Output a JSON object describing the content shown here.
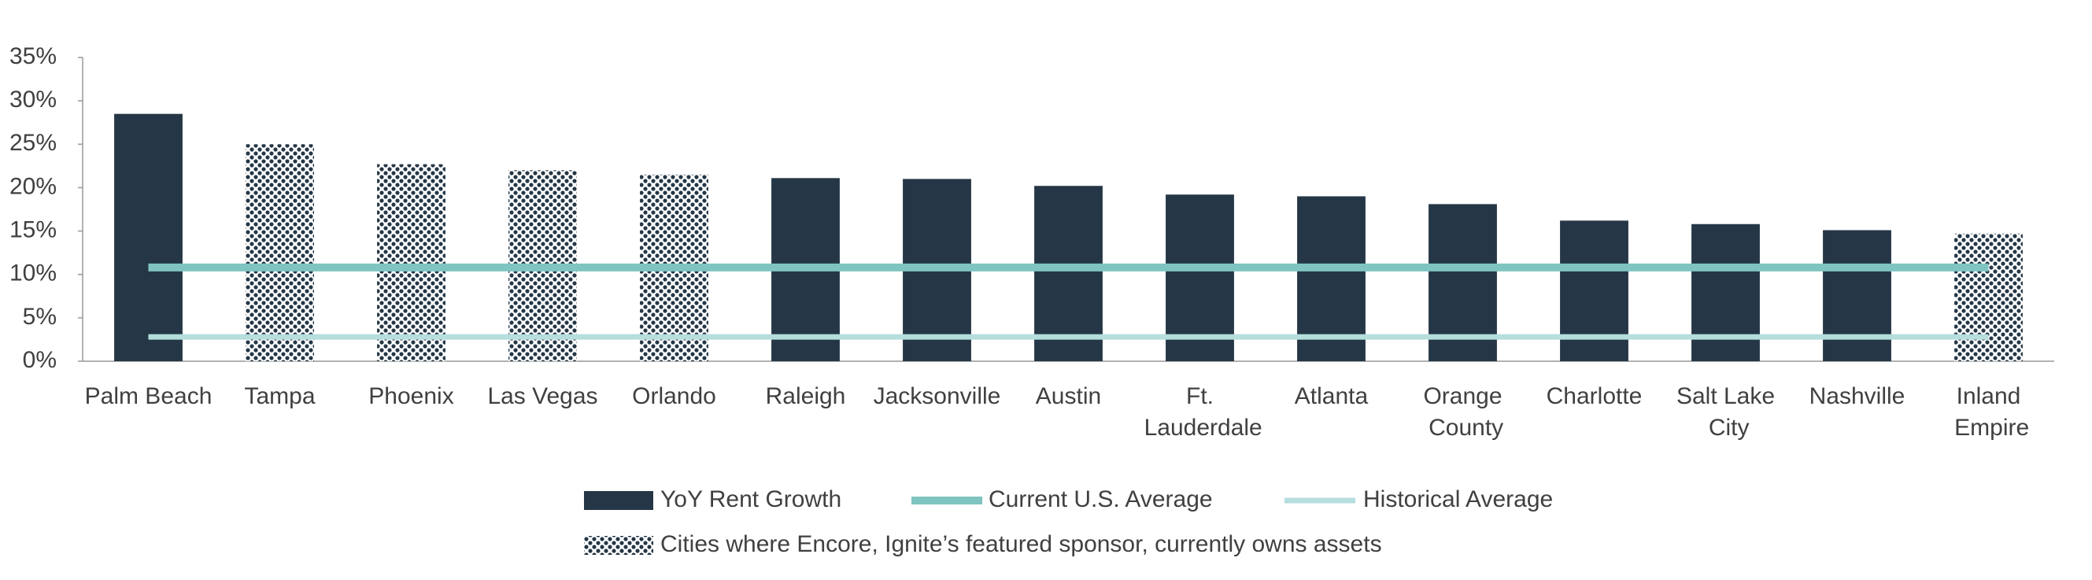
{
  "chart_data": {
    "type": "bar",
    "categories": [
      "Palm Beach",
      "Tampa",
      "Phoenix",
      "Las Vegas",
      "Orlando",
      "Raleigh",
      "Jacksonville",
      "Austin",
      "Ft. Lauderdale",
      "Atlanta",
      "Orange County",
      "Charlotte",
      "Salt Lake City",
      "Nashville",
      "Inland Empire"
    ],
    "series": [
      {
        "name": "YoY Rent Growth",
        "type": "bar",
        "color": "#253746",
        "values": [
          28.5,
          25.0,
          22.7,
          22.0,
          21.5,
          21.1,
          21.0,
          20.2,
          19.2,
          19.0,
          18.1,
          16.2,
          15.8,
          15.1,
          14.7
        ],
        "patterned": [
          false,
          true,
          true,
          true,
          true,
          false,
          false,
          false,
          false,
          false,
          false,
          false,
          false,
          false,
          true
        ]
      },
      {
        "name": "Current U.S. Average",
        "type": "line",
        "color": "#7fc4c0",
        "values": [
          10.8,
          10.8,
          10.8,
          10.8,
          10.8,
          10.8,
          10.8,
          10.8,
          10.8,
          10.8,
          10.8,
          10.8,
          10.8,
          10.8,
          10.8
        ]
      },
      {
        "name": "Historical Average",
        "type": "line",
        "color": "#b5dedd",
        "values": [
          2.8,
          2.8,
          2.8,
          2.8,
          2.8,
          2.8,
          2.8,
          2.8,
          2.8,
          2.8,
          2.8,
          2.8,
          2.8,
          2.8,
          2.8
        ]
      }
    ],
    "pattern_legend": "Cities where Encore, Ignite’s featured sponsor, currently owns assets",
    "ylim": [
      0,
      35
    ],
    "yticks": [
      {
        "value": 0,
        "label": "0%"
      },
      {
        "value": 5,
        "label": "5%"
      },
      {
        "value": 10,
        "label": "10%"
      },
      {
        "value": 15,
        "label": "15%"
      },
      {
        "value": 20,
        "label": "20%"
      },
      {
        "value": 25,
        "label": "25%"
      },
      {
        "value": 30,
        "label": "30%"
      },
      {
        "value": 35,
        "label": "35%"
      }
    ],
    "grid": false
  }
}
